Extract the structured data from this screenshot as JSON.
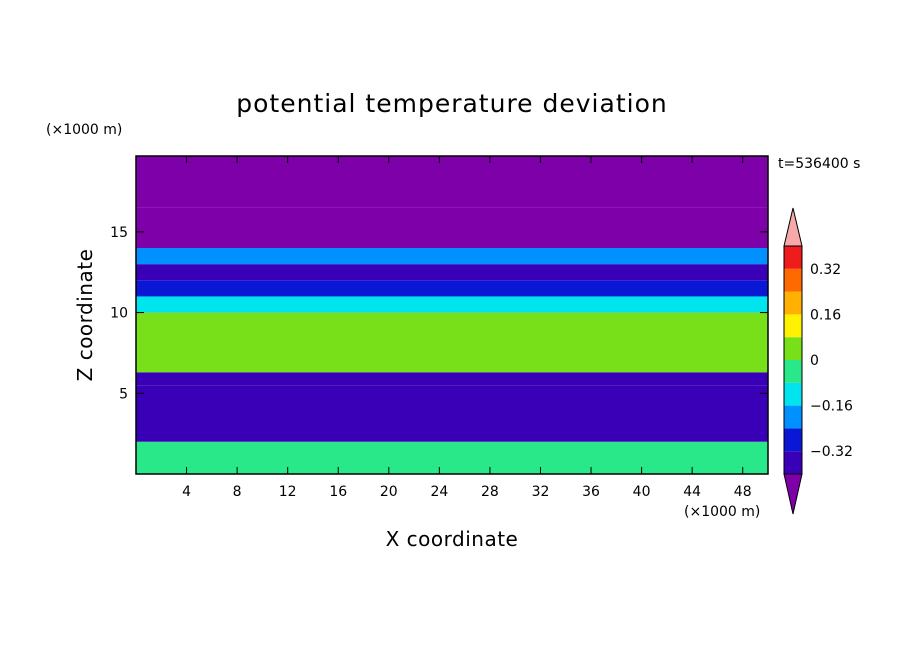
{
  "chart_data": {
    "type": "heatmap",
    "title": "potential temperature deviation",
    "xlabel": "X coordinate",
    "ylabel": "Z coordinate",
    "x_unit": "(×1000 m)",
    "y_unit": "(×1000 m)",
    "time_label": "t=536400 s",
    "xlim": [
      0,
      50
    ],
    "ylim": [
      0,
      19.7
    ],
    "x_ticks": [
      4,
      8,
      12,
      16,
      20,
      24,
      28,
      32,
      36,
      40,
      44,
      48
    ],
    "y_ticks": [
      5,
      10,
      15
    ],
    "colorbar": {
      "levels": [
        -0.4,
        -0.32,
        -0.24,
        -0.16,
        -0.08,
        0,
        0.08,
        0.16,
        0.24,
        0.32,
        0.4
      ],
      "tick_labels": [
        "0.32",
        "0.16",
        "0",
        "−0.16",
        "−0.32"
      ],
      "tick_values": [
        0.32,
        0.16,
        0,
        -0.16,
        -0.32
      ],
      "colors": [
        "#7d00a8",
        "#3a00b8",
        "#0a18d6",
        "#0090ff",
        "#00e4ee",
        "#28e88a",
        "#78e018",
        "#fff200",
        "#ffb000",
        "#ff6a00",
        "#ee1c1c",
        "#f7a8a8"
      ],
      "extend": "both"
    },
    "layers": [
      {
        "z": [
          0,
          2
        ],
        "value": -0.05
      },
      {
        "z": [
          2,
          5.5
        ],
        "value": -0.38
      },
      {
        "z": [
          5.5,
          6.3
        ],
        "value": -0.33
      },
      {
        "z": [
          6.3,
          7
        ],
        "value": 0.02
      },
      {
        "z": [
          7,
          10
        ],
        "value": 0.03
      },
      {
        "z": [
          10,
          11
        ],
        "value": -0.12
      },
      {
        "z": [
          11,
          12
        ],
        "value": -0.25
      },
      {
        "z": [
          12,
          13
        ],
        "value": -0.35
      },
      {
        "z": [
          13,
          14
        ],
        "value": -0.2
      },
      {
        "z": [
          14,
          16.5
        ],
        "value": -0.42
      },
      {
        "z": [
          16.5,
          19.7
        ],
        "value": -0.45
      }
    ]
  }
}
